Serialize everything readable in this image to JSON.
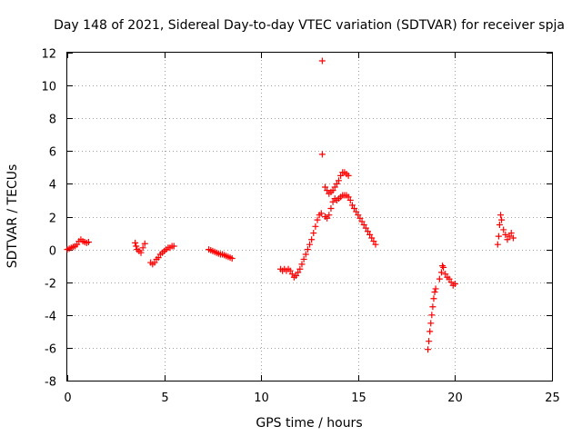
{
  "chart_data": {
    "type": "scatter",
    "title": "Day 148 of 2021, Sidereal Day-to-day VTEC variation (SDTVAR) for receiver spja",
    "xlabel": "GPS time / hours",
    "ylabel": "SDTVAR / TECUs",
    "xlim": [
      0,
      25
    ],
    "ylim": [
      -8,
      12
    ],
    "xticks": [
      0,
      5,
      10,
      15,
      20,
      25
    ],
    "yticks": [
      -8,
      -6,
      -4,
      -2,
      0,
      2,
      4,
      6,
      8,
      10,
      12
    ],
    "grid": true,
    "marker": "+",
    "color": "#ff0000",
    "series": [
      {
        "name": "SDTVAR",
        "points": [
          [
            0.0,
            0.0
          ],
          [
            0.1,
            0.05
          ],
          [
            0.2,
            0.1
          ],
          [
            0.3,
            0.15
          ],
          [
            0.4,
            0.2
          ],
          [
            0.5,
            0.3
          ],
          [
            0.6,
            0.5
          ],
          [
            0.7,
            0.6
          ],
          [
            0.8,
            0.5
          ],
          [
            0.9,
            0.45
          ],
          [
            1.0,
            0.4
          ],
          [
            1.1,
            0.45
          ],
          [
            3.5,
            0.4
          ],
          [
            3.55,
            0.2
          ],
          [
            3.6,
            0.0
          ],
          [
            3.7,
            -0.1
          ],
          [
            3.8,
            -0.2
          ],
          [
            3.9,
            0.1
          ],
          [
            4.0,
            0.35
          ],
          [
            4.3,
            -0.8
          ],
          [
            4.4,
            -0.9
          ],
          [
            4.5,
            -0.8
          ],
          [
            4.6,
            -0.6
          ],
          [
            4.7,
            -0.5
          ],
          [
            4.8,
            -0.3
          ],
          [
            4.9,
            -0.2
          ],
          [
            5.0,
            -0.1
          ],
          [
            5.1,
            0.0
          ],
          [
            5.2,
            0.1
          ],
          [
            5.3,
            0.1
          ],
          [
            5.4,
            0.2
          ],
          [
            5.5,
            0.2
          ],
          [
            7.3,
            0.0
          ],
          [
            7.4,
            -0.05
          ],
          [
            7.5,
            -0.1
          ],
          [
            7.6,
            -0.15
          ],
          [
            7.7,
            -0.2
          ],
          [
            7.8,
            -0.25
          ],
          [
            7.9,
            -0.3
          ],
          [
            8.0,
            -0.3
          ],
          [
            8.1,
            -0.35
          ],
          [
            8.2,
            -0.4
          ],
          [
            8.3,
            -0.45
          ],
          [
            8.4,
            -0.5
          ],
          [
            8.5,
            -0.55
          ],
          [
            11.0,
            -1.2
          ],
          [
            11.1,
            -1.3
          ],
          [
            11.2,
            -1.2
          ],
          [
            11.3,
            -1.3
          ],
          [
            11.4,
            -1.2
          ],
          [
            11.5,
            -1.3
          ],
          [
            11.6,
            -1.5
          ],
          [
            11.7,
            -1.7
          ],
          [
            11.8,
            -1.6
          ],
          [
            11.9,
            -1.4
          ],
          [
            12.0,
            -1.2
          ],
          [
            12.1,
            -0.9
          ],
          [
            12.2,
            -0.6
          ],
          [
            12.3,
            -0.3
          ],
          [
            12.4,
            0.0
          ],
          [
            12.5,
            0.3
          ],
          [
            12.6,
            0.6
          ],
          [
            12.7,
            1.0
          ],
          [
            12.8,
            1.4
          ],
          [
            12.9,
            1.8
          ],
          [
            13.0,
            2.1
          ],
          [
            13.1,
            2.2
          ],
          [
            13.15,
            11.5
          ],
          [
            13.15,
            5.8
          ],
          [
            13.3,
            3.8
          ],
          [
            13.4,
            3.6
          ],
          [
            13.5,
            3.4
          ],
          [
            13.6,
            3.5
          ],
          [
            13.7,
            3.6
          ],
          [
            13.8,
            3.8
          ],
          [
            13.9,
            4.0
          ],
          [
            14.0,
            4.2
          ],
          [
            14.1,
            4.5
          ],
          [
            14.2,
            4.7
          ],
          [
            14.3,
            4.7
          ],
          [
            14.4,
            4.6
          ],
          [
            14.5,
            4.5
          ],
          [
            13.3,
            2.0
          ],
          [
            13.4,
            1.9
          ],
          [
            13.5,
            2.1
          ],
          [
            13.6,
            2.5
          ],
          [
            13.7,
            2.9
          ],
          [
            13.8,
            3.1
          ],
          [
            13.9,
            3.0
          ],
          [
            14.0,
            3.1
          ],
          [
            14.1,
            3.2
          ],
          [
            14.2,
            3.3
          ],
          [
            14.3,
            3.3
          ],
          [
            14.4,
            3.3
          ],
          [
            14.5,
            3.2
          ],
          [
            14.6,
            3.0
          ],
          [
            14.7,
            2.7
          ],
          [
            14.8,
            2.5
          ],
          [
            14.9,
            2.3
          ],
          [
            15.0,
            2.1
          ],
          [
            15.1,
            1.9
          ],
          [
            15.2,
            1.7
          ],
          [
            15.3,
            1.5
          ],
          [
            15.4,
            1.3
          ],
          [
            15.5,
            1.1
          ],
          [
            15.6,
            0.9
          ],
          [
            15.7,
            0.7
          ],
          [
            15.8,
            0.5
          ],
          [
            15.9,
            0.3
          ],
          [
            18.6,
            -6.1
          ],
          [
            18.65,
            -5.6
          ],
          [
            18.7,
            -5.0
          ],
          [
            18.75,
            -4.5
          ],
          [
            18.8,
            -4.0
          ],
          [
            18.85,
            -3.5
          ],
          [
            18.9,
            -3.0
          ],
          [
            18.95,
            -2.6
          ],
          [
            19.0,
            -2.4
          ],
          [
            19.2,
            -1.8
          ],
          [
            19.3,
            -1.4
          ],
          [
            19.35,
            -1.0
          ],
          [
            19.4,
            -1.1
          ],
          [
            19.5,
            -1.5
          ],
          [
            19.6,
            -1.7
          ],
          [
            19.7,
            -1.8
          ],
          [
            19.8,
            -2.0
          ],
          [
            19.9,
            -2.2
          ],
          [
            20.0,
            -2.1
          ],
          [
            22.2,
            0.3
          ],
          [
            22.25,
            0.8
          ],
          [
            22.3,
            1.5
          ],
          [
            22.35,
            2.1
          ],
          [
            22.4,
            1.8
          ],
          [
            22.5,
            1.2
          ],
          [
            22.6,
            0.9
          ],
          [
            22.7,
            0.6
          ],
          [
            22.8,
            0.8
          ],
          [
            22.9,
            1.0
          ],
          [
            23.0,
            0.7
          ]
        ]
      }
    ]
  }
}
